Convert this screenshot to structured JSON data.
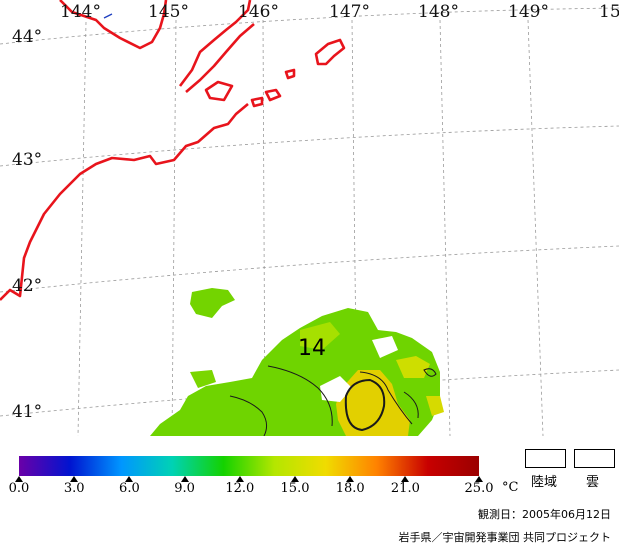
{
  "map": {
    "longitude_labels": [
      "144°",
      "145°",
      "146°",
      "147°",
      "148°",
      "149°",
      "15"
    ],
    "latitude_labels": [
      "44°",
      "43°",
      "42°",
      "41°"
    ],
    "contour_label": "14",
    "colors": {
      "coastline": "#e8141c",
      "grid": "#9a9a9a",
      "sst_green": "#6fd400",
      "sst_yellow": "#e6d000"
    }
  },
  "legend": {
    "tick_labels": [
      "0.0",
      "3.0",
      "6.0",
      "9.0",
      "12.0",
      "15.0",
      "18.0",
      "21.0",
      "25.0"
    ],
    "unit": "°C",
    "scale_min": 0,
    "scale_max": 25,
    "gradient_colors": [
      "#6a00a8",
      "#0014d0",
      "#0096ff",
      "#00d2b4",
      "#14d200",
      "#b4e600",
      "#f0dc00",
      "#ff8200",
      "#c80000",
      "#9b0000"
    ],
    "land_box_label": "陸域",
    "cloud_box_label": "雲"
  },
  "footer": {
    "observation_date": "観測日：2005年06月12日",
    "credit": "岩手県／宇宙開発事業団 共同プロジェクト"
  }
}
